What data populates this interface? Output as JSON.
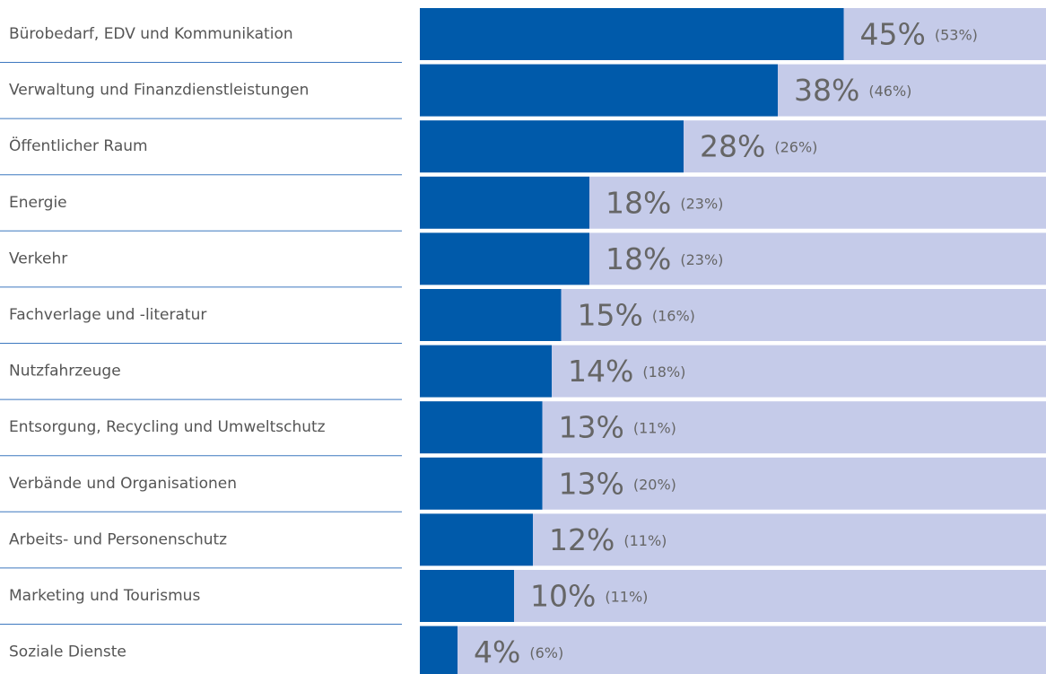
{
  "chart_data": {
    "type": "bar",
    "orientation": "horizontal",
    "categories": [
      "Bürobedarf, EDV und Kommunikation",
      "Verwaltung und Finanzdienstleistungen",
      "Öffentlicher Raum",
      "Energie",
      "Verkehr",
      "Fachverlage und -literatur",
      "Nutzfahrzeuge",
      "Entsorgung, Recycling und Umweltschutz",
      "Verbände und Organisationen",
      "Arbeits- und Personenschutz",
      "Marketing und Tourismus",
      "Soziale Dienste"
    ],
    "values": [
      45,
      38,
      28,
      18,
      18,
      15,
      14,
      13,
      13,
      12,
      10,
      4
    ],
    "value_labels": [
      "45%",
      "38%",
      "28%",
      "18%",
      "18%",
      "15%",
      "14%",
      "13%",
      "13%",
      "12%",
      "10%",
      "4%"
    ],
    "compare_values": [
      53,
      46,
      26,
      23,
      23,
      16,
      18,
      11,
      20,
      11,
      11,
      6
    ],
    "compare_labels": [
      "(53%)",
      "(46%)",
      "(26%)",
      "(23%)",
      "(23%)",
      "(16%)",
      "(18%)",
      "(11%)",
      "(20%)",
      "(11%)",
      "(11%)",
      "(6%)"
    ],
    "color": "#005aaa",
    "track_color": "#c5cbe9"
  }
}
